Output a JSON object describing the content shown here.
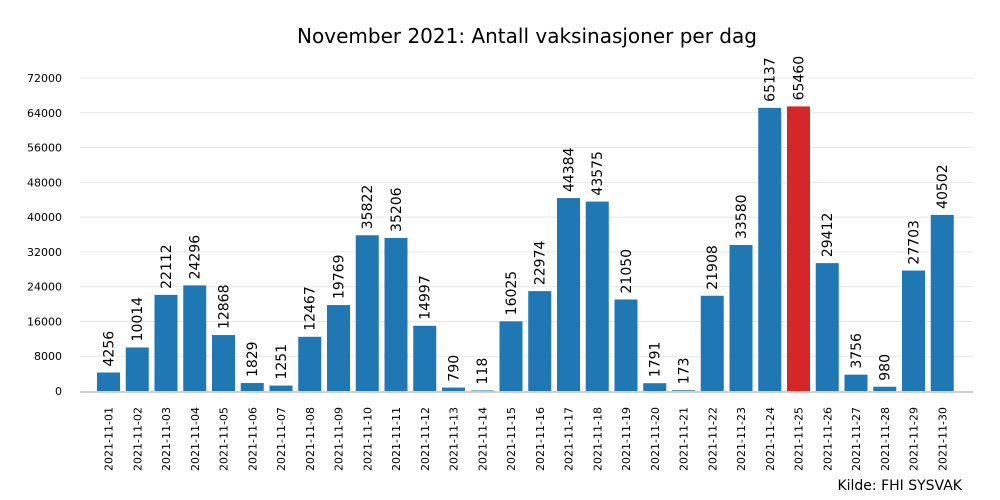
{
  "chart_data": {
    "type": "bar",
    "title": "November 2021: Antall vaksinasjoner per dag",
    "xlabel": "",
    "ylabel": "",
    "ylim": [
      0,
      72000
    ],
    "yticks": [
      0,
      8000,
      16000,
      24000,
      32000,
      40000,
      48000,
      56000,
      64000,
      72000
    ],
    "grid": "horizontal",
    "categories": [
      "2021-11-01",
      "2021-11-02",
      "2021-11-03",
      "2021-11-04",
      "2021-11-05",
      "2021-11-06",
      "2021-11-07",
      "2021-11-08",
      "2021-11-09",
      "2021-11-10",
      "2021-11-11",
      "2021-11-12",
      "2021-11-13",
      "2021-11-14",
      "2021-11-15",
      "2021-11-16",
      "2021-11-17",
      "2021-11-18",
      "2021-11-19",
      "2021-11-20",
      "2021-11-21",
      "2021-11-22",
      "2021-11-23",
      "2021-11-24",
      "2021-11-25",
      "2021-11-26",
      "2021-11-27",
      "2021-11-28",
      "2021-11-29",
      "2021-11-30"
    ],
    "values": [
      4256,
      10014,
      22112,
      24296,
      12868,
      1829,
      1251,
      12467,
      19769,
      35822,
      35206,
      14997,
      790,
      118,
      16025,
      22974,
      44384,
      43575,
      21050,
      1791,
      173,
      21908,
      33580,
      65137,
      65460,
      29412,
      3756,
      980,
      27703,
      40502
    ],
    "colors": {
      "default": "#1f77b4",
      "highlight": "#d62728",
      "grid": "#e8e8e8",
      "axis": "#d0d0d0"
    },
    "highlight_category": "2021-11-25"
  },
  "source": "Kilde: FHI SYSVAK"
}
